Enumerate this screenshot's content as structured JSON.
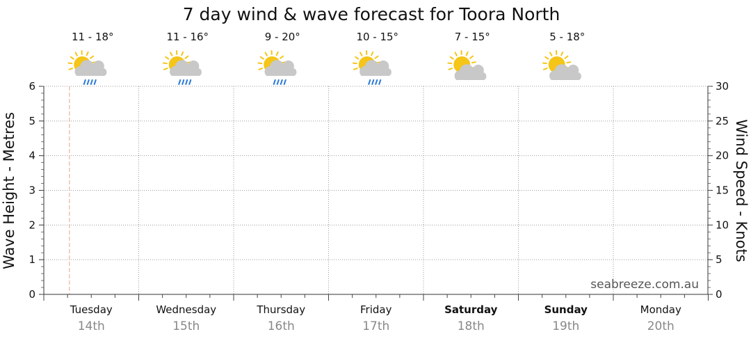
{
  "chart_data": {
    "type": "line",
    "title": "7 day wind & wave forecast for Toora North",
    "watermark": "seabreeze.com.au",
    "y_left": {
      "label": "Wave Height - Metres",
      "ylim": [
        0,
        6
      ],
      "ticks": [
        "0",
        "1",
        "2",
        "3",
        "4",
        "5",
        "6"
      ]
    },
    "y_right": {
      "label": "Wind Speed - Knots",
      "ylim": [
        0,
        30
      ],
      "ticks": [
        "0",
        "5",
        "10",
        "15",
        "20",
        "25",
        "30"
      ]
    },
    "grid": true,
    "current_time_marker_day_index": 0.27,
    "days": [
      {
        "day": "Tuesday",
        "date": "14th",
        "temp": "11 - 18°",
        "icon": "sun-cloud-rain-icon",
        "bold": false
      },
      {
        "day": "Wednesday",
        "date": "15th",
        "temp": "11 - 16°",
        "icon": "sun-cloud-rain-icon",
        "bold": false
      },
      {
        "day": "Thursday",
        "date": "16th",
        "temp": "9 - 20°",
        "icon": "sun-cloud-rain-icon",
        "bold": false
      },
      {
        "day": "Friday",
        "date": "17th",
        "temp": "10 - 15°",
        "icon": "sun-cloud-rain-icon",
        "bold": false
      },
      {
        "day": "Saturday",
        "date": "18th",
        "temp": "7 - 15°",
        "icon": "sun-cloud-icon",
        "bold": true
      },
      {
        "day": "Sunday",
        "date": "19th",
        "temp": "5 - 18°",
        "icon": "sun-cloud-icon",
        "bold": true
      },
      {
        "day": "Monday",
        "date": "20th",
        "temp": "",
        "icon": "",
        "bold": false
      }
    ],
    "series": []
  },
  "colors": {
    "grid": "#9a9a9a",
    "marker": "#e8a48c",
    "sun": "#f5c518",
    "cloud": "#c8c8c8",
    "rain": "#2b7bd8"
  }
}
